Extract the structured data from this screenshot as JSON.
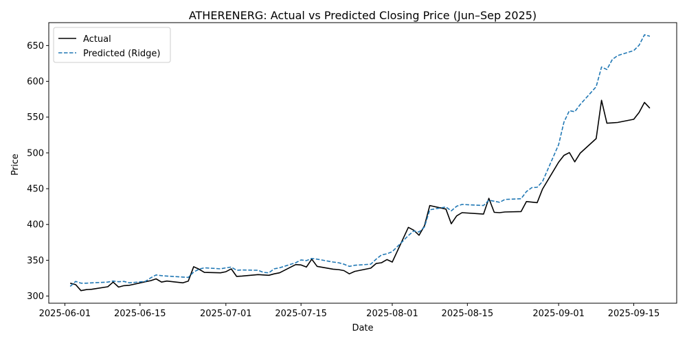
{
  "chart_data": {
    "type": "line",
    "title": "ATHERENERG: Actual vs Predicted Closing Price (Jun–Sep 2025)",
    "xlabel": "Date",
    "ylabel": "Price",
    "xlim": [
      "2025-05-29",
      "2025-09-23"
    ],
    "ylim": [
      290,
      682
    ],
    "x_ticks": [
      "2025-06-01",
      "2025-06-15",
      "2025-07-01",
      "2025-07-15",
      "2025-08-01",
      "2025-08-15",
      "2025-09-01",
      "2025-09-15"
    ],
    "y_ticks": [
      300,
      350,
      400,
      450,
      500,
      550,
      600,
      650
    ],
    "legend_position": "top-left",
    "grid": false,
    "series": [
      {
        "name": "Actual",
        "color": "#000000",
        "style": "solid",
        "points": [
          [
            "2025-06-02",
            318
          ],
          [
            "2025-06-03",
            316
          ],
          [
            "2025-06-04",
            307.5
          ],
          [
            "2025-06-05",
            309
          ],
          [
            "2025-06-06",
            309.5
          ],
          [
            "2025-06-09",
            313
          ],
          [
            "2025-06-10",
            319.5
          ],
          [
            "2025-06-11",
            312.5
          ],
          [
            "2025-06-12",
            314.5
          ],
          [
            "2025-06-13",
            315
          ],
          [
            "2025-06-16",
            320
          ],
          [
            "2025-06-17",
            321.5
          ],
          [
            "2025-06-18",
            324
          ],
          [
            "2025-06-19",
            319.5
          ],
          [
            "2025-06-20",
            321
          ],
          [
            "2025-06-23",
            318.5
          ],
          [
            "2025-06-24",
            321
          ],
          [
            "2025-06-25",
            341
          ],
          [
            "2025-06-26",
            337.5
          ],
          [
            "2025-06-27",
            333
          ],
          [
            "2025-06-30",
            332.5
          ],
          [
            "2025-07-01",
            334
          ],
          [
            "2025-07-02",
            338
          ],
          [
            "2025-07-03",
            327.5
          ],
          [
            "2025-07-04",
            328
          ],
          [
            "2025-07-07",
            330
          ],
          [
            "2025-07-08",
            329.5
          ],
          [
            "2025-07-09",
            329
          ],
          [
            "2025-07-10",
            331
          ],
          [
            "2025-07-11",
            332.5
          ],
          [
            "2025-07-14",
            344
          ],
          [
            "2025-07-15",
            343.5
          ],
          [
            "2025-07-16",
            340.5
          ],
          [
            "2025-07-17",
            351.5
          ],
          [
            "2025-07-18",
            341.5
          ],
          [
            "2025-07-21",
            337.5
          ],
          [
            "2025-07-22",
            337
          ],
          [
            "2025-07-23",
            335.5
          ],
          [
            "2025-07-24",
            331
          ],
          [
            "2025-07-25",
            334.5
          ],
          [
            "2025-07-28",
            339
          ],
          [
            "2025-07-29",
            345.5
          ],
          [
            "2025-07-30",
            346.5
          ],
          [
            "2025-07-31",
            351
          ],
          [
            "2025-08-01",
            347.5
          ],
          [
            "2025-08-04",
            396
          ],
          [
            "2025-08-05",
            392
          ],
          [
            "2025-08-06",
            385
          ],
          [
            "2025-08-07",
            398
          ],
          [
            "2025-08-08",
            426.5
          ],
          [
            "2025-08-11",
            421.5
          ],
          [
            "2025-08-12",
            401
          ],
          [
            "2025-08-13",
            412
          ],
          [
            "2025-08-14",
            416.5
          ],
          [
            "2025-08-18",
            414.5
          ],
          [
            "2025-08-19",
            436.5
          ],
          [
            "2025-08-20",
            417
          ],
          [
            "2025-08-21",
            416.5
          ],
          [
            "2025-08-22",
            417.5
          ],
          [
            "2025-08-25",
            418
          ],
          [
            "2025-08-26",
            432
          ],
          [
            "2025-08-28",
            430.5
          ],
          [
            "2025-08-29",
            449.5
          ],
          [
            "2025-09-01",
            487
          ],
          [
            "2025-09-02",
            496.5
          ],
          [
            "2025-09-03",
            500.5
          ],
          [
            "2025-09-04",
            487.5
          ],
          [
            "2025-09-05",
            499.5
          ],
          [
            "2025-09-08",
            520
          ],
          [
            "2025-09-09",
            573.5
          ],
          [
            "2025-09-10",
            541.5
          ],
          [
            "2025-09-11",
            542
          ],
          [
            "2025-09-12",
            542.5
          ],
          [
            "2025-09-15",
            547
          ],
          [
            "2025-09-16",
            556.5
          ],
          [
            "2025-09-17",
            570.5
          ],
          [
            "2025-09-18",
            562.5
          ]
        ]
      },
      {
        "name": "Predicted (Ridge)",
        "color": "#1f77b4",
        "style": "dashed",
        "points": [
          [
            "2025-06-02",
            313.5
          ],
          [
            "2025-06-03",
            320.5
          ],
          [
            "2025-06-04",
            318
          ],
          [
            "2025-06-05",
            318
          ],
          [
            "2025-06-06",
            318.5
          ],
          [
            "2025-06-09",
            319.5
          ],
          [
            "2025-06-10",
            321
          ],
          [
            "2025-06-11",
            320
          ],
          [
            "2025-06-12",
            320.5
          ],
          [
            "2025-06-13",
            318.5
          ],
          [
            "2025-06-16",
            320.5
          ],
          [
            "2025-06-17",
            325.5
          ],
          [
            "2025-06-18",
            329.5
          ],
          [
            "2025-06-19",
            328.5
          ],
          [
            "2025-06-20",
            328
          ],
          [
            "2025-06-23",
            326.5
          ],
          [
            "2025-06-24",
            326
          ],
          [
            "2025-06-25",
            333.5
          ],
          [
            "2025-06-26",
            337.5
          ],
          [
            "2025-06-27",
            339.5
          ],
          [
            "2025-06-30",
            338
          ],
          [
            "2025-07-01",
            339.5
          ],
          [
            "2025-07-02",
            340.5
          ],
          [
            "2025-07-03",
            336
          ],
          [
            "2025-07-04",
            336.5
          ],
          [
            "2025-07-07",
            336
          ],
          [
            "2025-07-08",
            333
          ],
          [
            "2025-07-09",
            332.5
          ],
          [
            "2025-07-10",
            338
          ],
          [
            "2025-07-11",
            339.5
          ],
          [
            "2025-07-14",
            346.5
          ],
          [
            "2025-07-15",
            350.5
          ],
          [
            "2025-07-16",
            349.5
          ],
          [
            "2025-07-17",
            352.5
          ],
          [
            "2025-07-18",
            351.5
          ],
          [
            "2025-07-21",
            347.5
          ],
          [
            "2025-07-22",
            346.5
          ],
          [
            "2025-07-23",
            344.5
          ],
          [
            "2025-07-24",
            341.5
          ],
          [
            "2025-07-25",
            343
          ],
          [
            "2025-07-28",
            344.5
          ],
          [
            "2025-07-29",
            351.5
          ],
          [
            "2025-07-30",
            357.5
          ],
          [
            "2025-07-31",
            359
          ],
          [
            "2025-08-01",
            362
          ],
          [
            "2025-08-04",
            384.5
          ],
          [
            "2025-08-05",
            391
          ],
          [
            "2025-08-06",
            389.5
          ],
          [
            "2025-08-07",
            396.5
          ],
          [
            "2025-08-08",
            420.5
          ],
          [
            "2025-08-11",
            424.5
          ],
          [
            "2025-08-12",
            419
          ],
          [
            "2025-08-13",
            425.5
          ],
          [
            "2025-08-14",
            428
          ],
          [
            "2025-08-18",
            426.5
          ],
          [
            "2025-08-19",
            434
          ],
          [
            "2025-08-20",
            432.5
          ],
          [
            "2025-08-21",
            431
          ],
          [
            "2025-08-22",
            435
          ],
          [
            "2025-08-25",
            436
          ],
          [
            "2025-08-26",
            446
          ],
          [
            "2025-08-27",
            451.5
          ],
          [
            "2025-08-28",
            452
          ],
          [
            "2025-08-29",
            460
          ],
          [
            "2025-09-01",
            511.5
          ],
          [
            "2025-09-02",
            543
          ],
          [
            "2025-09-03",
            559
          ],
          [
            "2025-09-04",
            557.5
          ],
          [
            "2025-09-05",
            567.5
          ],
          [
            "2025-09-08",
            592.5
          ],
          [
            "2025-09-09",
            620
          ],
          [
            "2025-09-10",
            616.5
          ],
          [
            "2025-09-11",
            630.5
          ],
          [
            "2025-09-12",
            636
          ],
          [
            "2025-09-15",
            643
          ],
          [
            "2025-09-16",
            650.5
          ],
          [
            "2025-09-17",
            665
          ],
          [
            "2025-09-18",
            663
          ]
        ]
      }
    ]
  }
}
